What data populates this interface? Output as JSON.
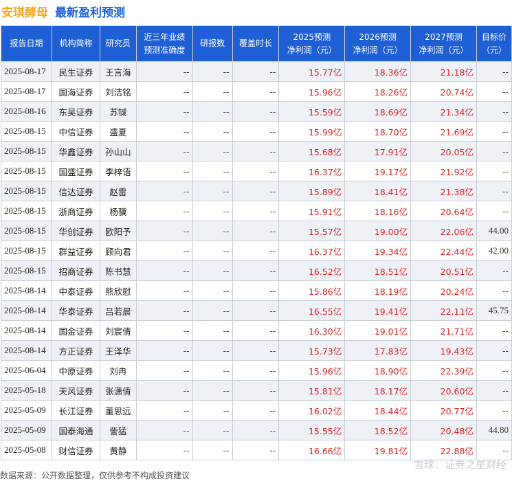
{
  "title": {
    "stock": "安琪酵母",
    "main": "最新盈利预测"
  },
  "columns": [
    "报告日期",
    "机构简称",
    "研究员",
    "近三年业绩预测准确度",
    "研报数",
    "覆盖时长",
    "2025预测净利润（元）",
    "2026预测净利润（元）",
    "2027预测净利润（元）",
    "目标价（元）"
  ],
  "column_lines": [
    [
      "报告日期"
    ],
    [
      "机构简称"
    ],
    [
      "研究员"
    ],
    [
      "近三年业绩",
      "预测准确度"
    ],
    [
      "研报数"
    ],
    [
      "覆盖时长"
    ],
    [
      "2025预测",
      "净利润（元）"
    ],
    [
      "2026预测",
      "净利润（元）"
    ],
    [
      "2027预测",
      "净利润（元）"
    ],
    [
      "目标价",
      "（元）"
    ]
  ],
  "rows": [
    {
      "date": "2025-08-17",
      "inst": "民生证券",
      "analyst": "王言海",
      "acc": "--",
      "reports": "--",
      "cover": "--",
      "p2025": "15.77亿",
      "p2026": "18.36亿",
      "p2027": "21.18亿",
      "target": "--"
    },
    {
      "date": "2025-08-17",
      "inst": "国海证券",
      "analyst": "刘洁铭",
      "acc": "--",
      "reports": "--",
      "cover": "--",
      "p2025": "15.96亿",
      "p2026": "18.26亿",
      "p2027": "20.74亿",
      "target": "--"
    },
    {
      "date": "2025-08-16",
      "inst": "东吴证券",
      "analyst": "苏铖",
      "acc": "--",
      "reports": "--",
      "cover": "--",
      "p2025": "15.59亿",
      "p2026": "18.69亿",
      "p2027": "21.34亿",
      "target": "--"
    },
    {
      "date": "2025-08-15",
      "inst": "中信证券",
      "analyst": "盛夏",
      "acc": "--",
      "reports": "--",
      "cover": "--",
      "p2025": "15.99亿",
      "p2026": "18.70亿",
      "p2027": "21.69亿",
      "target": "--"
    },
    {
      "date": "2025-08-15",
      "inst": "华鑫证券",
      "analyst": "孙山山",
      "acc": "--",
      "reports": "--",
      "cover": "--",
      "p2025": "15.68亿",
      "p2026": "17.91亿",
      "p2027": "20.05亿",
      "target": "--"
    },
    {
      "date": "2025-08-15",
      "inst": "国盛证券",
      "analyst": "李梓语",
      "acc": "--",
      "reports": "--",
      "cover": "--",
      "p2025": "16.37亿",
      "p2026": "19.17亿",
      "p2027": "21.92亿",
      "target": "--"
    },
    {
      "date": "2025-08-15",
      "inst": "信达证券",
      "analyst": "赵雷",
      "acc": "--",
      "reports": "--",
      "cover": "--",
      "p2025": "15.89亿",
      "p2026": "18.41亿",
      "p2027": "21.38亿",
      "target": "--"
    },
    {
      "date": "2025-08-15",
      "inst": "浙商证券",
      "analyst": "杨骥",
      "acc": "--",
      "reports": "--",
      "cover": "--",
      "p2025": "15.91亿",
      "p2026": "18.16亿",
      "p2027": "20.64亿",
      "target": "--"
    },
    {
      "date": "2025-08-15",
      "inst": "华创证券",
      "analyst": "欧阳予",
      "acc": "--",
      "reports": "--",
      "cover": "--",
      "p2025": "15.57亿",
      "p2026": "19.00亿",
      "p2027": "22.06亿",
      "target": "44.00"
    },
    {
      "date": "2025-08-15",
      "inst": "群益证券",
      "analyst": "顾向君",
      "acc": "--",
      "reports": "--",
      "cover": "--",
      "p2025": "16.37亿",
      "p2026": "19.34亿",
      "p2027": "22.44亿",
      "target": "42.00"
    },
    {
      "date": "2025-08-15",
      "inst": "招商证券",
      "analyst": "陈书慧",
      "acc": "--",
      "reports": "--",
      "cover": "--",
      "p2025": "16.52亿",
      "p2026": "18.51亿",
      "p2027": "20.51亿",
      "target": "--"
    },
    {
      "date": "2025-08-14",
      "inst": "中泰证券",
      "analyst": "熊欣慰",
      "acc": "--",
      "reports": "--",
      "cover": "--",
      "p2025": "15.86亿",
      "p2026": "18.19亿",
      "p2027": "20.24亿",
      "target": "--"
    },
    {
      "date": "2025-08-14",
      "inst": "华泰证券",
      "analyst": "吕若晨",
      "acc": "--",
      "reports": "--",
      "cover": "--",
      "p2025": "16.55亿",
      "p2026": "19.41亿",
      "p2027": "22.11亿",
      "target": "45.75"
    },
    {
      "date": "2025-08-14",
      "inst": "国金证券",
      "analyst": "刘宸倩",
      "acc": "--",
      "reports": "--",
      "cover": "--",
      "p2025": "16.30亿",
      "p2026": "19.01亿",
      "p2027": "21.71亿",
      "target": "--"
    },
    {
      "date": "2025-08-14",
      "inst": "方正证券",
      "analyst": "王泽华",
      "acc": "--",
      "reports": "--",
      "cover": "--",
      "p2025": "15.73亿",
      "p2026": "17.83亿",
      "p2027": "19.43亿",
      "target": "--"
    },
    {
      "date": "2025-06-04",
      "inst": "中原证券",
      "analyst": "刘冉",
      "acc": "--",
      "reports": "--",
      "cover": "--",
      "p2025": "15.96亿",
      "p2026": "18.90亿",
      "p2027": "22.39亿",
      "target": "--"
    },
    {
      "date": "2025-05-18",
      "inst": "天风证券",
      "analyst": "张潇倩",
      "acc": "--",
      "reports": "--",
      "cover": "--",
      "p2025": "15.81亿",
      "p2026": "18.17亿",
      "p2027": "20.60亿",
      "target": "--"
    },
    {
      "date": "2025-05-09",
      "inst": "长江证券",
      "analyst": "董思远",
      "acc": "--",
      "reports": "--",
      "cover": "--",
      "p2025": "16.02亿",
      "p2026": "18.44亿",
      "p2027": "20.77亿",
      "target": "--"
    },
    {
      "date": "2025-05-09",
      "inst": "国泰海通",
      "analyst": "訾猛",
      "acc": "--",
      "reports": "--",
      "cover": "--",
      "p2025": "15.55亿",
      "p2026": "18.52亿",
      "p2027": "20.48亿",
      "target": "44.80"
    },
    {
      "date": "2025-05-08",
      "inst": "财信证券",
      "analyst": "黄静",
      "acc": "--",
      "reports": "--",
      "cover": "--",
      "p2025": "16.66亿",
      "p2026": "19.81亿",
      "p2027": "22.88亿",
      "target": "--"
    }
  ],
  "footer": "数据来源：公开数据整理，仅供参考不构成投资建议",
  "watermark": "雪球：证券之星财经",
  "colors": {
    "header_bg": "#1f5fd6",
    "title_stock": "#f5a623",
    "title_main": "#1f5fd6",
    "forecast_text": "#e02020",
    "alt_row": "#eef1f6"
  }
}
